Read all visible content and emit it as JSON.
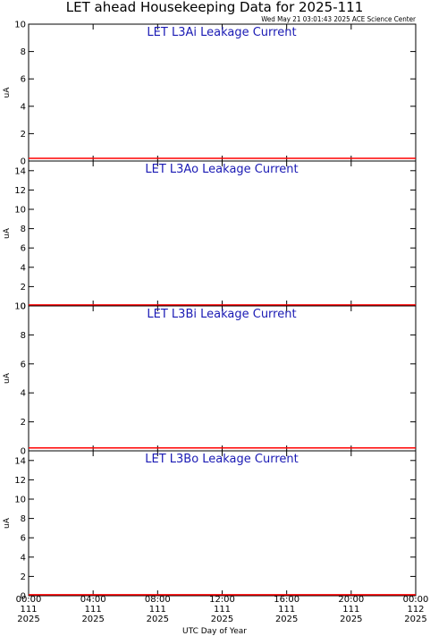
{
  "header": {
    "title": "LET ahead Housekeeping Data for 2025-111",
    "timestamp": "Wed May 21 03:01:43 2025 ACE Science Center"
  },
  "colors": {
    "panel_title": "#1a1ab4",
    "data_line": "#ff0000",
    "axes": "#000000"
  },
  "chart_data": [
    {
      "type": "line",
      "title": "LET L3Ai Leakage Current",
      "ylabel": "uA",
      "ylim": [
        0,
        10
      ],
      "yticks": [
        0,
        2,
        4,
        6,
        8,
        10
      ],
      "series": [
        {
          "x": [
            "00:00",
            "24:00"
          ],
          "values": [
            0.2,
            0.2
          ]
        }
      ]
    },
    {
      "type": "line",
      "title": "LET L3Ao Leakage Current",
      "ylabel": "uA",
      "ylim": [
        0,
        15
      ],
      "yticks": [
        0,
        2,
        4,
        6,
        8,
        10,
        12,
        14
      ],
      "series": [
        {
          "x": [
            "00:00",
            "24:00"
          ],
          "values": [
            0.1,
            0.1
          ]
        }
      ]
    },
    {
      "type": "line",
      "title": "LET L3Bi Leakage Current",
      "ylabel": "uA",
      "ylim": [
        0,
        10
      ],
      "yticks": [
        0,
        2,
        4,
        6,
        8,
        10
      ],
      "series": [
        {
          "x": [
            "00:00",
            "24:00"
          ],
          "values": [
            0.2,
            0.2
          ]
        }
      ]
    },
    {
      "type": "line",
      "title": "LET L3Bo Leakage Current",
      "ylabel": "uA",
      "ylim": [
        0,
        15
      ],
      "yticks": [
        0,
        2,
        4,
        6,
        8,
        10,
        12,
        14
      ],
      "series": [
        {
          "x": [
            "00:00",
            "24:00"
          ],
          "values": [
            0.1,
            0.1
          ]
        }
      ]
    }
  ],
  "x_axis": {
    "label": "UTC Day of Year",
    "ticks": [
      {
        "time": "00:00",
        "doy": "111",
        "year": "2025"
      },
      {
        "time": "04:00",
        "doy": "111",
        "year": "2025"
      },
      {
        "time": "08:00",
        "doy": "111",
        "year": "2025"
      },
      {
        "time": "12:00",
        "doy": "111",
        "year": "2025"
      },
      {
        "time": "16:00",
        "doy": "111",
        "year": "2025"
      },
      {
        "time": "20:00",
        "doy": "111",
        "year": "2025"
      },
      {
        "time": "00:00",
        "doy": "112",
        "year": "2025"
      }
    ]
  }
}
